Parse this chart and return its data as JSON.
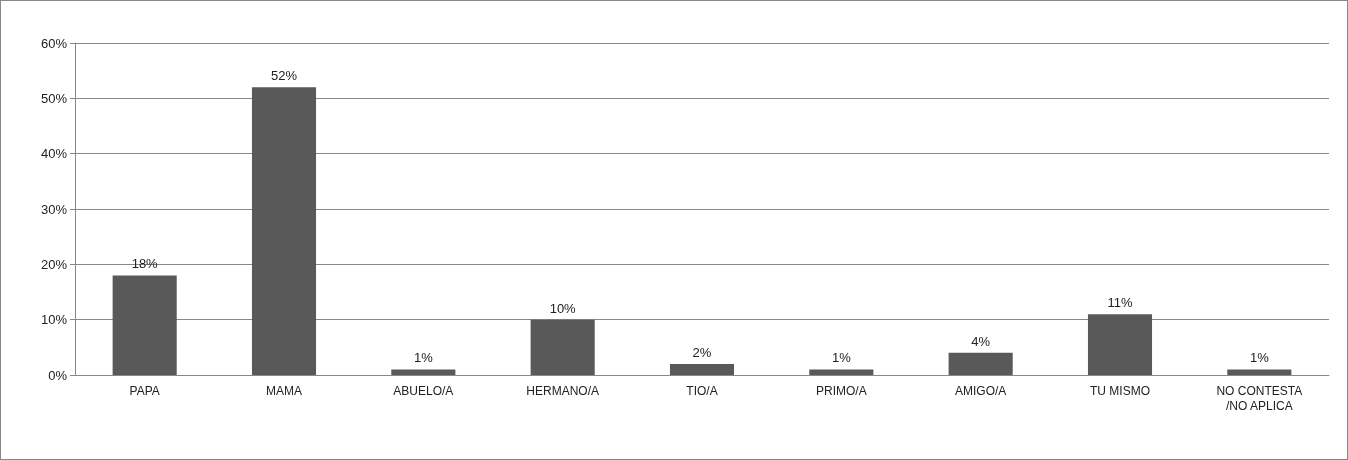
{
  "chart_data": {
    "type": "bar",
    "categories": [
      "PAPA",
      "MAMA",
      "ABUELO/A",
      "HERMANO/A",
      "TIO/A",
      "PRIMO/A",
      "AMIGO/A",
      "TU MISMO",
      "NO CONTESTA/NO APLICA"
    ],
    "values": [
      18,
      52,
      1,
      10,
      2,
      1,
      4,
      11,
      1
    ],
    "color": "#595959",
    "ylim": [
      0,
      60
    ],
    "yticks": [
      {
        "value": 0,
        "label": "0%"
      },
      {
        "value": 10,
        "label": "10%"
      },
      {
        "value": 20,
        "label": "20%"
      },
      {
        "value": 30,
        "label": "30%"
      },
      {
        "value": 40,
        "label": "40%"
      },
      {
        "value": 50,
        "label": "50%"
      },
      {
        "value": 60,
        "label": "60%"
      }
    ],
    "value_labels": [
      "18%",
      "52%",
      "1%",
      "10%",
      "2%",
      "1%",
      "4%",
      "11%",
      "1%"
    ],
    "grid": "y"
  }
}
